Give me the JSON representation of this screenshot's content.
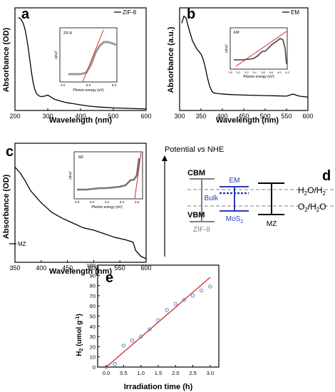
{
  "chart_data": [
    {
      "panel": "a",
      "type": "line",
      "xlabel": "Wavelength (nm)",
      "ylabel": "Absorbance (OD)",
      "xlim": [
        200,
        600
      ],
      "ylim": [
        0,
        1
      ],
      "xticks": [
        "200",
        "300",
        "400",
        "500",
        "600"
      ],
      "legend": {
        "position": "top-right",
        "entries": [
          "ZIF-8"
        ]
      },
      "series": [
        {
          "name": "ZIF-8",
          "color": "#000000",
          "x": [
            210,
            215,
            220,
            225,
            230,
            235,
            240,
            245,
            250,
            255,
            260,
            265,
            270,
            275,
            280,
            290,
            300,
            310,
            320,
            340,
            360,
            380,
            400,
            420,
            450,
            500,
            550,
            600
          ],
          "y": [
            0.9,
            0.9,
            0.88,
            0.85,
            0.8,
            0.72,
            0.62,
            0.5,
            0.38,
            0.28,
            0.21,
            0.17,
            0.15,
            0.14,
            0.135,
            0.14,
            0.15,
            0.13,
            0.11,
            0.09,
            0.075,
            0.065,
            0.055,
            0.045,
            0.035,
            0.025,
            0.02,
            0.015
          ]
        }
      ],
      "inset": {
        "label": "ZIF-8",
        "xlabel": "Photon energy (eV)",
        "ylabel": "(αhv)²",
        "xticks": [
          "4.0",
          "5.0",
          "6.0"
        ],
        "xlim": [
          4.0,
          6.0
        ]
      }
    },
    {
      "panel": "b",
      "type": "line",
      "xlabel": "Wavelength (nm)",
      "ylabel": "Absorbance (a.u.)",
      "xlim": [
        300,
        600
      ],
      "ylim": [
        0,
        1
      ],
      "xticks": [
        "300",
        "350",
        "400",
        "450",
        "500",
        "550",
        "600"
      ],
      "legend": {
        "position": "top-right",
        "entries": [
          "EM"
        ]
      },
      "series": [
        {
          "name": "EM",
          "color": "#000000",
          "x": [
            305,
            310,
            315,
            320,
            330,
            340,
            350,
            355,
            360,
            365,
            370,
            375,
            380,
            400,
            420,
            450,
            500,
            550,
            565,
            580,
            600
          ],
          "y": [
            0.85,
            0.92,
            0.9,
            0.82,
            0.68,
            0.6,
            0.55,
            0.5,
            0.42,
            0.32,
            0.24,
            0.19,
            0.17,
            0.16,
            0.155,
            0.15,
            0.145,
            0.14,
            0.16,
            0.14,
            0.13
          ]
        }
      ],
      "inset": {
        "label": "EM",
        "xlabel": "Photon energy (eV)",
        "ylabel": "(αhv)²",
        "xticks": [
          "2.8",
          "3.0",
          "3.2",
          "3.4",
          "3.6",
          "3.8",
          "4.0",
          "4.2"
        ],
        "xlim": [
          2.8,
          4.2
        ]
      }
    },
    {
      "panel": "c",
      "type": "line",
      "xlabel": "Wavelength (nm)",
      "ylabel": "Absorbance (OD)",
      "xlim": [
        350,
        600
      ],
      "ylim": [
        0,
        1
      ],
      "xticks": [
        "350",
        "400",
        "450",
        "500",
        "550",
        "600"
      ],
      "legend": {
        "position": "bottom-left",
        "entries": [
          "MZ"
        ]
      },
      "series": [
        {
          "name": "MZ",
          "color": "#000000",
          "x": [
            350,
            360,
            370,
            380,
            390,
            400,
            410,
            420,
            440,
            460,
            480,
            500,
            520,
            540,
            560,
            575,
            580,
            590,
            600
          ],
          "y": [
            0.8,
            0.75,
            0.68,
            0.6,
            0.55,
            0.5,
            0.46,
            0.42,
            0.37,
            0.33,
            0.29,
            0.27,
            0.24,
            0.21,
            0.19,
            0.17,
            0.1,
            0.05,
            0.03
          ]
        }
      ],
      "inset": {
        "label": "MZ",
        "xlabel": "Photon energy (eV)",
        "ylabel": "(αhv)²",
        "xticks": [
          "2.8",
          "3.0",
          "3.2",
          "3.4",
          "3.6"
        ],
        "xlim": [
          2.8,
          3.6
        ]
      }
    },
    {
      "panel": "e",
      "type": "scatter",
      "xlabel": "Irradiation time (h)",
      "ylabel": "H2 (umol g-1)",
      "xlim": [
        -0.25,
        3.25
      ],
      "ylim": [
        0,
        100
      ],
      "xticks": [
        "0.0",
        "0.5",
        "1.0",
        "1.5",
        "2.0",
        "2.5",
        "3.0"
      ],
      "yticks": [
        "0",
        "10",
        "20",
        "30",
        "40",
        "50",
        "60",
        "70",
        "80",
        "90",
        "100"
      ],
      "grid": false,
      "series": [
        {
          "x": [
            0,
            0.25,
            0.5,
            0.75,
            1.0,
            1.25,
            1.5,
            1.75,
            2.0,
            2.25,
            2.5,
            2.75,
            3.0
          ],
          "y": [
            0,
            3,
            21,
            26,
            30,
            37,
            46,
            56,
            62,
            66,
            70,
            75,
            79
          ]
        }
      ],
      "fit_line": {
        "x": [
          0,
          3.0
        ],
        "y": [
          0,
          88
        ],
        "color": "#d62728"
      }
    }
  ],
  "panel_labels": {
    "a": "a",
    "b": "b",
    "c": "c",
    "d": "d",
    "e": "e"
  },
  "diagram_d": {
    "title": "Potential vs NHE",
    "title_prefix": "Potential ",
    "title_italic": "vs",
    "title_suffix": " NHE",
    "cbm": "CBM",
    "vbm": "VBM",
    "zif8": "ZIF-8",
    "em": "EM",
    "bulk": "Bulk",
    "mos2": "MoS",
    "mos2_sub": "2",
    "mz": "MZ",
    "h2o_h2": "H",
    "h2o_h2_sub": "2",
    "h2o_h2_rest": "O/H",
    "h2o_h2_sub2": "2",
    "o2_h2o": "O",
    "o2_h2o_sub": "2",
    "o2_h2o_rest": "/H",
    "o2_h2o_sub2": "2",
    "o2_h2o_end": "O"
  },
  "colors": {
    "axis": "#000000",
    "gray": "#7f7f7f",
    "blue": "#2b3bb3",
    "fit_red": "#d62728",
    "dot": "#4a7bb7"
  }
}
